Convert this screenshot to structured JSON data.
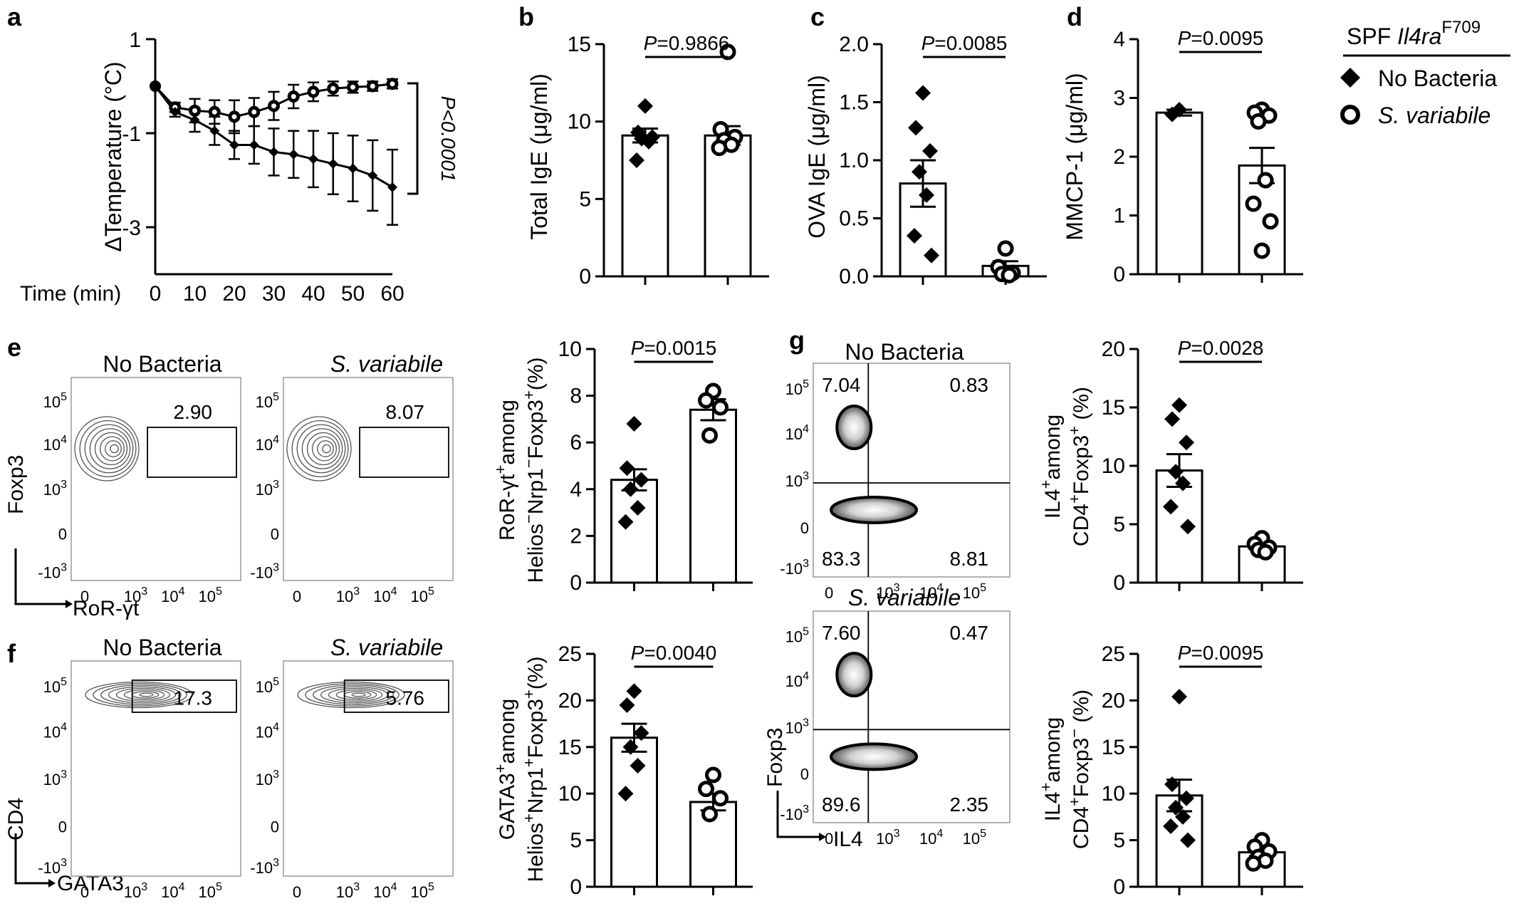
{
  "legend": {
    "header_prefix": "SPF ",
    "header_gene": "Il4ra",
    "header_sup": "F709",
    "items": [
      {
        "marker": "diamond-filled",
        "label": "No Bacteria"
      },
      {
        "marker": "circle-open",
        "label": "S. variabile"
      }
    ]
  },
  "axis_labels": {
    "a_y": "ΔTemperature (°C)",
    "a_x": "Time (min)",
    "b_y": "Total IgE (μg/ml)",
    "c_y": "OVA IgE (μg/ml)",
    "d_y": "MMCP-1 (μg/ml)",
    "e_y1_a": "RoR-γt",
    "e_y1_sup": "+",
    "e_y1_b": "among",
    "e_y2_a": "Helios",
    "e_y2_sup1": "−",
    "e_y2_b": "Nrp1",
    "e_y2_sup2": "−",
    "e_y2_c": "Foxp3",
    "e_y2_sup3": "+",
    "e_y2_d": "(%)",
    "f_y1_a": "GATA3",
    "f_y1_sup": "+",
    "f_y1_b": "among",
    "f_y2_a": "Helios",
    "f_y2_sup1": "+",
    "f_y2_b": "Nrp1",
    "f_y2_sup2": "+",
    "f_y2_c": "Foxp3",
    "f_y2_sup3": "+",
    "f_y2_d": "(%)",
    "g1_y1_a": "IL4",
    "g1_y1_sup": "+",
    "g1_y1_b": "among",
    "g1_y2_a": "CD4",
    "g1_y2_sup1": "+",
    "g1_y2_b": "Foxp3",
    "g1_y2_sup2": "+",
    "g1_y2_c": " (%)",
    "g2_y1_a": "IL4",
    "g2_y1_sup": "+",
    "g2_y1_b": "among",
    "g2_y2_a": "CD4",
    "g2_y2_sup1": "+",
    "g2_y2_b": "Foxp3",
    "g2_y2_sup2": "−",
    "g2_y2_c": " (%)"
  },
  "flow": {
    "e": {
      "titles": [
        "No Bacteria",
        "S. variabile"
      ],
      "gate_values": [
        "2.90",
        "8.07"
      ],
      "y_axis": "Foxp3",
      "x_axis": "RoR-γt"
    },
    "f": {
      "titles": [
        "No Bacteria",
        "S. variabile"
      ],
      "gate_values": [
        "17.3",
        "5.76"
      ],
      "y_axis": "CD4",
      "x_axis": "GATA3"
    },
    "g": {
      "titles": [
        "No Bacteria",
        "S. variabile"
      ],
      "quadrants": [
        [
          "7.04",
          "0.83",
          "83.3",
          "8.81"
        ],
        [
          "7.60",
          "0.47",
          "89.6",
          "2.35"
        ]
      ],
      "y_axis": "Foxp3",
      "x_axis": "IL4"
    },
    "ticks": {
      "log_y": [
        "10",
        "5",
        "10",
        "4",
        "10",
        "3",
        "0",
        "-10",
        "3"
      ],
      "log_x": [
        "0",
        "10",
        "3",
        "10",
        "4",
        "10",
        "5"
      ]
    }
  },
  "chart_data": [
    {
      "panel": "a",
      "type": "line",
      "xlabel": "Time (min)",
      "ylabel": "ΔTemperature (°C)",
      "xlim": [
        0,
        60
      ],
      "ylim": [
        -4,
        1
      ],
      "xticks": [
        "0",
        "10",
        "20",
        "30",
        "40",
        "50",
        "60"
      ],
      "yticks": [
        "1",
        "-1",
        "-3"
      ],
      "x": [
        0,
        5,
        10,
        15,
        20,
        25,
        30,
        35,
        40,
        45,
        50,
        55,
        60
      ],
      "series": [
        {
          "marker": "circle-open",
          "values": [
            0,
            -0.45,
            -0.52,
            -0.55,
            -0.65,
            -0.55,
            -0.42,
            -0.22,
            -0.12,
            -0.05,
            -0.02,
            0.0,
            0.05
          ],
          "errors": [
            0,
            0.1,
            0.25,
            0.25,
            0.35,
            0.3,
            0.3,
            0.25,
            0.2,
            0.15,
            0.12,
            0.1,
            0.1
          ]
        },
        {
          "marker": "diamond-filled",
          "values": [
            0,
            -0.55,
            -0.72,
            -0.95,
            -1.25,
            -1.25,
            -1.4,
            -1.45,
            -1.55,
            -1.65,
            -1.75,
            -1.9,
            -2.15
          ],
          "errors": [
            0,
            0.1,
            0.25,
            0.3,
            0.3,
            0.4,
            0.5,
            0.5,
            0.6,
            0.65,
            0.7,
            0.75,
            0.8
          ]
        }
      ],
      "annotation": "P<0.0001"
    },
    {
      "panel": "b",
      "type": "bar",
      "ylabel": "Total IgE (μg/ml)",
      "ylim": [
        0,
        15
      ],
      "yticks": [
        "0",
        "5",
        "10",
        "15"
      ],
      "groups": [
        {
          "marker": "diamond-filled",
          "mean": 9.1,
          "sem": 0.45,
          "points": [
            11.0,
            9.3,
            9.0,
            8.9,
            8.7,
            7.5
          ]
        },
        {
          "marker": "circle-open",
          "mean": 9.1,
          "sem": 0.6,
          "points": [
            14.5,
            9.5,
            9.0,
            8.8,
            8.5,
            8.3
          ]
        }
      ],
      "pvalue": "P=0.9866"
    },
    {
      "panel": "c",
      "type": "bar",
      "ylabel": "OVA IgE (μg/ml)",
      "ylim": [
        0,
        2.0
      ],
      "yticks": [
        "0.0",
        "0.5",
        "1.0",
        "1.5",
        "2.0"
      ],
      "groups": [
        {
          "marker": "diamond-filled",
          "mean": 0.8,
          "sem": 0.2,
          "points": [
            1.58,
            1.28,
            1.08,
            0.9,
            0.7,
            0.35,
            0.18
          ]
        },
        {
          "marker": "circle-open",
          "mean": 0.09,
          "sem": 0.04,
          "points": [
            0.24,
            0.08,
            0.03,
            0.02,
            0.01
          ]
        }
      ],
      "pvalue": "P=0.0085"
    },
    {
      "panel": "d",
      "type": "bar",
      "ylabel": "MMCP-1 (μg/ml)",
      "ylim": [
        0,
        4
      ],
      "yticks": [
        "0",
        "1",
        "2",
        "3",
        "4"
      ],
      "groups": [
        {
          "marker": "diamond-filled",
          "mean": 2.75,
          "sem": 0.05,
          "points": [
            2.8,
            2.72
          ]
        },
        {
          "marker": "circle-open",
          "mean": 1.85,
          "sem": 0.3,
          "points": [
            2.8,
            2.75,
            2.7,
            2.6,
            1.6,
            1.2,
            0.9,
            0.4
          ]
        }
      ],
      "pvalue": "P=0.0095"
    },
    {
      "panel": "e",
      "type": "bar",
      "ylim": [
        0,
        10
      ],
      "yticks": [
        "0",
        "2",
        "4",
        "6",
        "8",
        "10"
      ],
      "groups": [
        {
          "marker": "diamond-filled",
          "mean": 4.4,
          "sem": 0.45,
          "points": [
            6.8,
            4.9,
            4.4,
            4.0,
            3.2,
            2.6
          ]
        },
        {
          "marker": "circle-open",
          "mean": 7.4,
          "sem": 0.45,
          "points": [
            8.2,
            7.8,
            7.5,
            6.3
          ]
        }
      ],
      "pvalue": "P=0.0015"
    },
    {
      "panel": "f",
      "type": "bar",
      "ylim": [
        0,
        25
      ],
      "yticks": [
        "0",
        "5",
        "10",
        "15",
        "20",
        "25"
      ],
      "groups": [
        {
          "marker": "diamond-filled",
          "mean": 16,
          "sem": 1.5,
          "points": [
            21,
            19.5,
            16.5,
            15,
            13,
            10
          ]
        },
        {
          "marker": "circle-open",
          "mean": 9.1,
          "sem": 0.9,
          "points": [
            12,
            10.5,
            9.5,
            7.8
          ]
        }
      ],
      "pvalue": "P=0.0040"
    },
    {
      "panel": "g1",
      "type": "bar",
      "ylim": [
        0,
        20
      ],
      "yticks": [
        "0",
        "5",
        "10",
        "15",
        "20"
      ],
      "groups": [
        {
          "marker": "diamond-filled",
          "mean": 9.6,
          "sem": 1.4,
          "points": [
            15.2,
            14,
            12,
            9.5,
            8.5,
            6.5,
            4.8
          ]
        },
        {
          "marker": "circle-open",
          "mean": 3.1,
          "sem": 0.25,
          "points": [
            3.8,
            3.3,
            3.0,
            2.8,
            2.6
          ]
        }
      ],
      "pvalue": "P=0.0028"
    },
    {
      "panel": "g2",
      "type": "bar",
      "ylim": [
        0,
        25
      ],
      "yticks": [
        "0",
        "5",
        "10",
        "15",
        "20",
        "25"
      ],
      "groups": [
        {
          "marker": "diamond-filled",
          "mean": 9.8,
          "sem": 1.7,
          "points": [
            20.4,
            11,
            9.5,
            8.5,
            7.5,
            6.5,
            5
          ]
        },
        {
          "marker": "circle-open",
          "mean": 3.7,
          "sem": 0.4,
          "points": [
            5.0,
            4.3,
            3.8,
            3.2,
            2.8,
            2.5
          ]
        }
      ],
      "pvalue": "P=0.0095"
    }
  ]
}
